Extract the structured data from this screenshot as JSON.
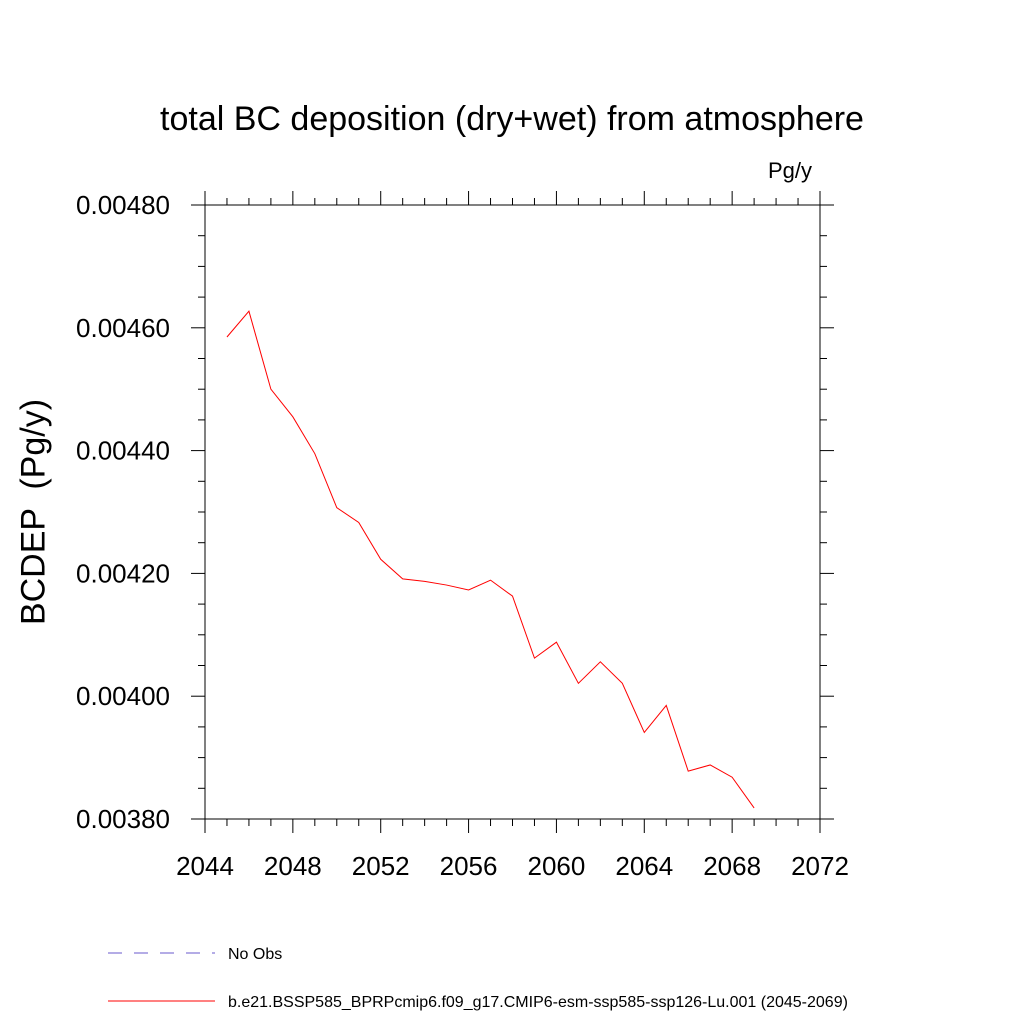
{
  "chart_data": {
    "type": "line",
    "title": "total BC deposition (dry+wet) from atmosphere",
    "units_label": "Pg/y",
    "ylabel": "BCDEP  (Pg/y)",
    "xlabel": "",
    "xlim": [
      2044,
      2072
    ],
    "ylim": [
      0.0038,
      0.0048
    ],
    "xticks": [
      2044,
      2048,
      2052,
      2056,
      2060,
      2064,
      2068,
      2072
    ],
    "yticks": [
      "0.00380",
      "0.00400",
      "0.00420",
      "0.00440",
      "0.00460",
      "0.00480"
    ],
    "grid": false,
    "legend_position": "bottom-left",
    "series": [
      {
        "name": "No Obs",
        "color": "#6a5acd",
        "dash": "dashed",
        "x": [],
        "values": []
      },
      {
        "name": "b.e21.BSSP585_BPRPcmip6.f09_g17.CMIP6-esm-ssp585-ssp126-Lu.001 (2045-2069)",
        "color": "#ff0000",
        "dash": "solid",
        "x": [
          2045,
          2046,
          2047,
          2048,
          2049,
          2050,
          2051,
          2052,
          2053,
          2054,
          2055,
          2056,
          2057,
          2058,
          2059,
          2060,
          2061,
          2062,
          2063,
          2064,
          2065,
          2066,
          2067,
          2068,
          2069
        ],
        "values": [
          0.004585,
          0.004627,
          0.0045,
          0.004455,
          0.004395,
          0.004307,
          0.004283,
          0.004223,
          0.004191,
          0.004187,
          0.004181,
          0.004173,
          0.004189,
          0.004163,
          0.004062,
          0.004088,
          0.004021,
          0.004056,
          0.004021,
          0.003941,
          0.003985,
          0.003878,
          0.003888,
          0.003868,
          0.003818
        ]
      }
    ]
  }
}
